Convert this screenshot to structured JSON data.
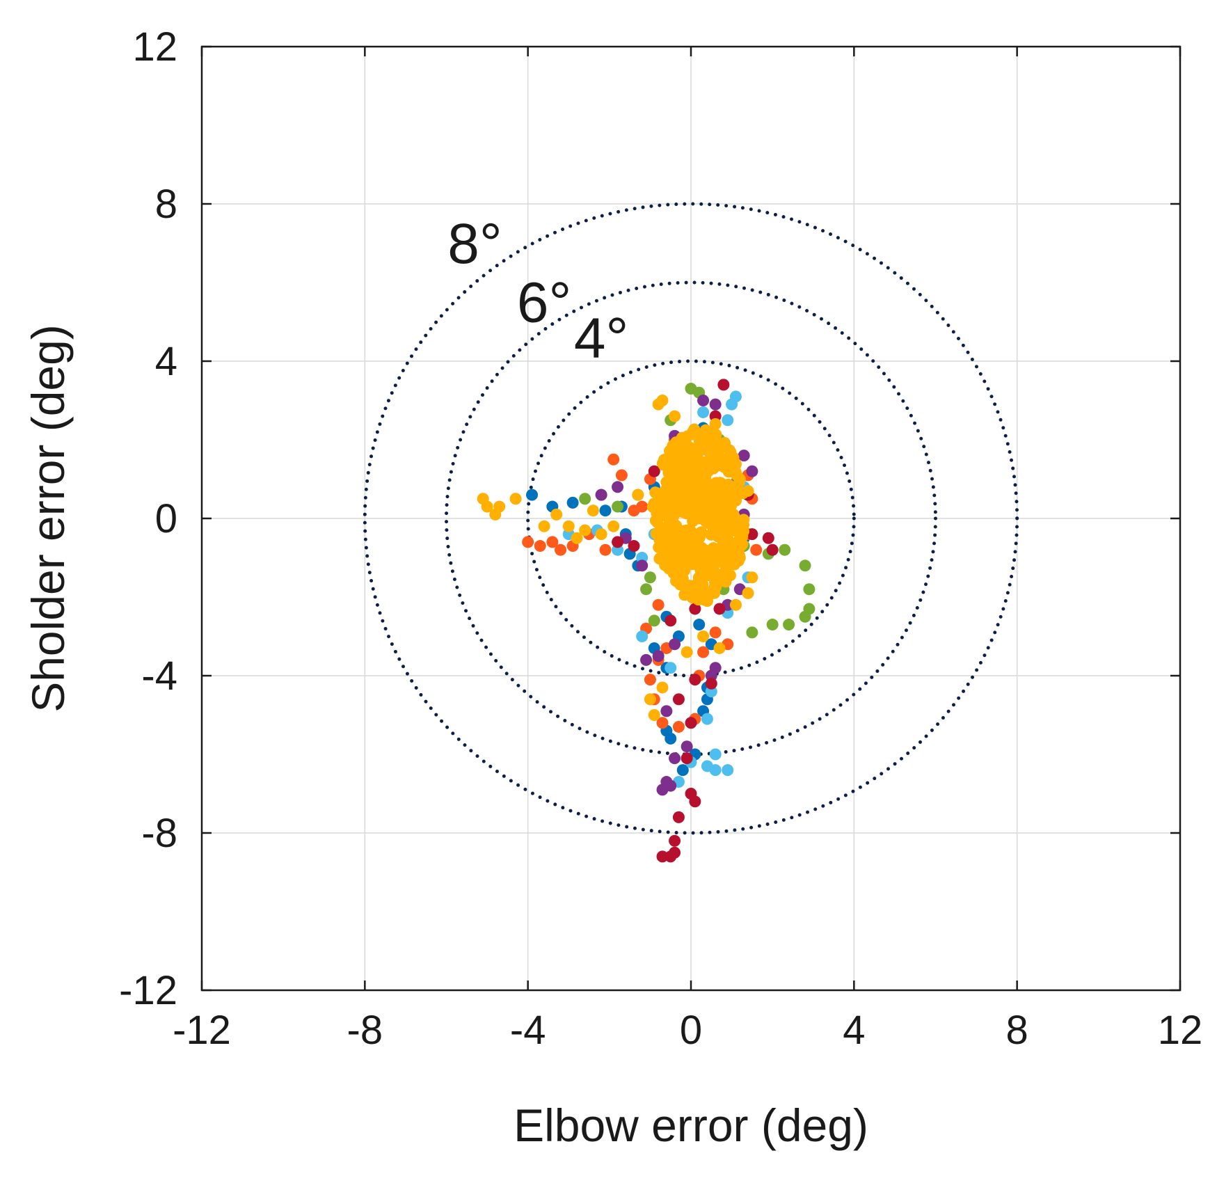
{
  "chart_data": {
    "type": "scatter",
    "xlabel": "Elbow error (deg)",
    "ylabel": "Sholder error (deg)",
    "xlim": [
      -12,
      12
    ],
    "ylim": [
      -12,
      12
    ],
    "xticks": [
      -12,
      -8,
      -4,
      0,
      4,
      8,
      12
    ],
    "yticks": [
      -12,
      -8,
      -4,
      0,
      4,
      8,
      12
    ],
    "grid": true,
    "legend": "none",
    "rings": [
      {
        "radius": 4,
        "label": "4°",
        "label_at": [
          -2.2,
          4.1
        ]
      },
      {
        "radius": 6,
        "label": "6°",
        "label_at": [
          -3.6,
          5.0
        ]
      },
      {
        "radius": 8,
        "label": "8°",
        "label_at": [
          -5.3,
          6.5
        ]
      }
    ],
    "ring_color": "#0d1f45",
    "series_colors": [
      "#0072bd",
      "#ff5a1a",
      "#77ac30",
      "#4dbeee",
      "#7e2f8e",
      "#b7102e",
      "#ffb000"
    ],
    "series": [
      {
        "color": "#0072bd",
        "points": [
          [
            -3.9,
            0.6
          ],
          [
            -3.4,
            0.3
          ],
          [
            -2.9,
            0.4
          ],
          [
            -2.1,
            0.2
          ],
          [
            -1.7,
            0.3
          ],
          [
            -1.6,
            -0.4
          ],
          [
            -1.5,
            -0.9
          ],
          [
            -1.3,
            -1.2
          ],
          [
            -0.9,
            0.8
          ],
          [
            -0.7,
            -0.3
          ],
          [
            -0.5,
            1.6
          ],
          [
            0.3,
            2.3
          ],
          [
            0.8,
            -0.6
          ],
          [
            1.1,
            0.9
          ],
          [
            1.3,
            -0.5
          ],
          [
            -0.6,
            -2.5
          ],
          [
            -0.3,
            -3.0
          ],
          [
            0.2,
            -2.7
          ],
          [
            0.5,
            -3.2
          ],
          [
            -0.6,
            -3.8
          ],
          [
            0.4,
            -4.6
          ],
          [
            0.3,
            -4.9
          ],
          [
            -0.6,
            -5.4
          ],
          [
            -0.5,
            -5.6
          ],
          [
            0.1,
            -6.0
          ],
          [
            -0.2,
            -6.4
          ],
          [
            0.4,
            -4.3
          ],
          [
            -0.9,
            -3.3
          ]
        ]
      },
      {
        "color": "#ff5a1a",
        "points": [
          [
            -4.0,
            -0.6
          ],
          [
            -3.7,
            -0.7
          ],
          [
            -3.4,
            -0.6
          ],
          [
            -3.2,
            -0.8
          ],
          [
            -2.9,
            -0.7
          ],
          [
            -2.5,
            -0.4
          ],
          [
            -2.1,
            -0.8
          ],
          [
            -1.9,
            1.5
          ],
          [
            -1.7,
            1.1
          ],
          [
            -1.4,
            0.2
          ],
          [
            -1.2,
            0.3
          ],
          [
            -1.0,
            1.0
          ],
          [
            -0.4,
            2.0
          ],
          [
            1.4,
            1.1
          ],
          [
            1.5,
            0.5
          ],
          [
            1.4,
            -0.4
          ],
          [
            1.6,
            -0.8
          ],
          [
            0.9,
            -1.4
          ],
          [
            -1.1,
            -2.8
          ],
          [
            -0.8,
            -2.2
          ],
          [
            -0.6,
            -3.3
          ],
          [
            0.6,
            -2.9
          ],
          [
            0.3,
            -3.4
          ],
          [
            0.9,
            -3.2
          ],
          [
            -1.0,
            -4.1
          ],
          [
            -0.9,
            -4.6
          ],
          [
            -0.7,
            -5.2
          ],
          [
            -0.3,
            -5.3
          ],
          [
            0.2,
            -4.0
          ],
          [
            0.1,
            -5.1
          ],
          [
            -0.8,
            -3.6
          ]
        ]
      },
      {
        "color": "#77ac30",
        "points": [
          [
            -2.6,
            0.5
          ],
          [
            -2.2,
            0.6
          ],
          [
            -1.8,
            0.3
          ],
          [
            -1.3,
            0.6
          ],
          [
            -1.0,
            -1.5
          ],
          [
            0.0,
            3.3
          ],
          [
            0.2,
            3.2
          ],
          [
            -0.5,
            2.5
          ],
          [
            0.7,
            2.0
          ],
          [
            1.3,
            -0.7
          ],
          [
            1.9,
            -0.9
          ],
          [
            2.3,
            -0.8
          ],
          [
            2.8,
            -1.2
          ],
          [
            2.9,
            -1.8
          ],
          [
            2.9,
            -2.3
          ],
          [
            2.8,
            -2.5
          ],
          [
            2.4,
            -2.7
          ],
          [
            2.0,
            -2.7
          ],
          [
            1.5,
            -2.9
          ],
          [
            -1.1,
            -1.8
          ],
          [
            -0.9,
            -2.6
          ],
          [
            0.8,
            -1.8
          ]
        ]
      },
      {
        "color": "#4dbeee",
        "points": [
          [
            -3.0,
            -0.4
          ],
          [
            -2.3,
            -0.3
          ],
          [
            -1.8,
            -0.8
          ],
          [
            -1.2,
            -1.0
          ],
          [
            -0.9,
            -0.4
          ],
          [
            1.1,
            3.1
          ],
          [
            1.0,
            2.9
          ],
          [
            0.9,
            2.5
          ],
          [
            0.3,
            2.7
          ],
          [
            1.3,
            0.8
          ],
          [
            1.1,
            -0.2
          ],
          [
            1.4,
            -1.5
          ],
          [
            0.9,
            -2.4
          ],
          [
            -1.2,
            -3.0
          ],
          [
            -0.5,
            -3.8
          ],
          [
            0.5,
            -4.4
          ],
          [
            0.4,
            -5.1
          ],
          [
            0.6,
            -6.0
          ],
          [
            0.4,
            -6.3
          ],
          [
            0.0,
            -6.2
          ],
          [
            0.6,
            -6.4
          ],
          [
            0.9,
            -6.4
          ],
          [
            -0.3,
            -6.7
          ]
        ]
      },
      {
        "color": "#7e2f8e",
        "points": [
          [
            -2.2,
            0.6
          ],
          [
            -1.8,
            0.8
          ],
          [
            -1.6,
            -0.5
          ],
          [
            -1.2,
            -1.2
          ],
          [
            -0.4,
            2.1
          ],
          [
            0.3,
            3.0
          ],
          [
            0.6,
            2.9
          ],
          [
            1.3,
            1.6
          ],
          [
            1.5,
            1.2
          ],
          [
            1.3,
            0.1
          ],
          [
            1.2,
            -1.8
          ],
          [
            0.9,
            -2.2
          ],
          [
            -1.1,
            -3.6
          ],
          [
            -0.8,
            -3.5
          ],
          [
            -0.4,
            -3.2
          ],
          [
            0.5,
            -4.0
          ],
          [
            -0.6,
            -4.9
          ],
          [
            -0.1,
            -5.8
          ],
          [
            -0.4,
            -6.1
          ],
          [
            -0.5,
            -6.8
          ],
          [
            -0.7,
            -6.9
          ],
          [
            -0.6,
            -6.7
          ],
          [
            0.6,
            -3.8
          ]
        ]
      },
      {
        "color": "#b7102e",
        "points": [
          [
            -1.8,
            -0.6
          ],
          [
            -1.4,
            -0.7
          ],
          [
            -0.9,
            1.2
          ],
          [
            -0.2,
            1.9
          ],
          [
            0.8,
            3.4
          ],
          [
            0.6,
            2.6
          ],
          [
            1.4,
            0.6
          ],
          [
            1.5,
            -0.4
          ],
          [
            1.9,
            -0.5
          ],
          [
            2.0,
            -0.8
          ],
          [
            0.7,
            -2.3
          ],
          [
            0.1,
            -2.3
          ],
          [
            -0.5,
            -2.6
          ],
          [
            0.1,
            -4.1
          ],
          [
            0.5,
            -4.2
          ],
          [
            -0.3,
            -4.6
          ],
          [
            0.0,
            -5.2
          ],
          [
            -0.1,
            -6.1
          ],
          [
            0.0,
            -7.0
          ],
          [
            0.1,
            -7.2
          ],
          [
            -0.3,
            -7.6
          ],
          [
            -0.4,
            -8.2
          ],
          [
            -0.5,
            -8.6
          ],
          [
            -0.4,
            -8.5
          ],
          [
            -0.7,
            -8.6
          ]
        ]
      },
      {
        "color": "#ffb000",
        "points": [
          [
            -5.1,
            0.5
          ],
          [
            -5.0,
            0.3
          ],
          [
            -4.7,
            0.3
          ],
          [
            -4.8,
            0.1
          ],
          [
            -4.3,
            0.5
          ],
          [
            -3.6,
            -0.2
          ],
          [
            -3.3,
            0.1
          ],
          [
            -3.0,
            -0.2
          ],
          [
            -2.8,
            -0.5
          ],
          [
            -2.6,
            -0.3
          ],
          [
            -2.4,
            0.2
          ],
          [
            -2.2,
            -0.4
          ],
          [
            -1.9,
            -0.2
          ],
          [
            -1.3,
            0.6
          ],
          [
            -0.8,
            2.9
          ],
          [
            -0.7,
            3.0
          ],
          [
            -0.4,
            2.6
          ],
          [
            0.6,
            2.4
          ],
          [
            1.2,
            1.0
          ],
          [
            1.4,
            0.7
          ],
          [
            1.5,
            -1.5
          ],
          [
            1.4,
            -1.9
          ],
          [
            1.1,
            -2.2
          ],
          [
            1.2,
            -1.0
          ],
          [
            -0.1,
            -3.4
          ],
          [
            0.3,
            -3.0
          ],
          [
            0.7,
            -3.3
          ],
          [
            -1.0,
            -4.6
          ],
          [
            -0.7,
            -4.3
          ],
          [
            -0.9,
            -5.0
          ],
          [
            0.2,
            1.7
          ],
          [
            0.4,
            1.2
          ],
          [
            0.1,
            0.7
          ],
          [
            -0.2,
            1.0
          ],
          [
            0.2,
            0.2
          ],
          [
            -0.1,
            -0.3
          ],
          [
            0.3,
            -0.8
          ],
          [
            -0.2,
            -1.3
          ],
          [
            0.1,
            -1.7
          ],
          [
            0.4,
            -2.1
          ],
          [
            -0.4,
            -0.8
          ],
          [
            0.6,
            0.0
          ],
          [
            -0.5,
            0.4
          ],
          [
            0.7,
            1.5
          ]
        ]
      }
    ],
    "dense_core": {
      "color": "#ffb000",
      "center": [
        0.2,
        0.1
      ],
      "radii": [
        1.15,
        2.2
      ]
    }
  }
}
